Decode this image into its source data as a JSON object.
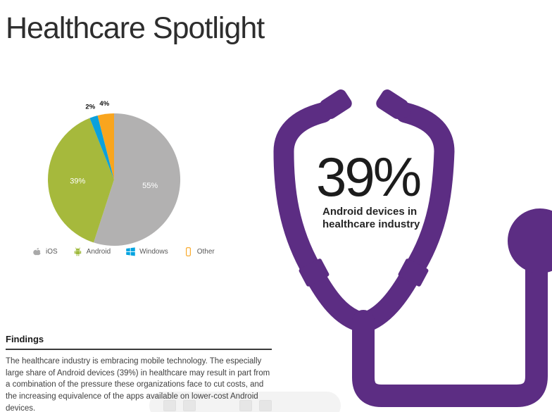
{
  "page": {
    "title": "Healthcare Spotlight"
  },
  "chart_data": {
    "type": "pie",
    "categories": [
      "iOS",
      "Android",
      "Windows",
      "Other"
    ],
    "values": [
      55,
      39,
      2,
      4
    ],
    "labels": [
      "55%",
      "39%",
      "2%",
      "4%"
    ],
    "colors": [
      "#b2b1b1",
      "#a6b93c",
      "#0ba1dc",
      "#f9a51e"
    ],
    "title": "",
    "start_angle_deg": 0,
    "direction": "clockwise",
    "legend_position": "bottom",
    "label_rule": "slices >= 10% labeled inside in white, small slices labeled outside in black"
  },
  "legend": {
    "items": [
      {
        "label": "iOS",
        "icon": "apple-icon",
        "color": "#a9a9a9"
      },
      {
        "label": "Android",
        "icon": "android-icon",
        "color": "#9fba3d"
      },
      {
        "label": "Windows",
        "icon": "windows-icon",
        "color": "#00a3e0"
      },
      {
        "label": "Other",
        "icon": "phone-icon",
        "color": "#f9a51e"
      }
    ]
  },
  "callout": {
    "value": "39%",
    "line1": "Android devices in",
    "line2": "healthcare industry"
  },
  "findings": {
    "heading": "Findings",
    "body": "The healthcare industry is embracing mobile technology. The especially large share of Android devices (39%) in healthcare may result in part from a combination of the pressure these organizations face to cut costs, and the increasing equivalence of the apps available on lower-cost Android devices."
  },
  "graphic": {
    "name": "stethoscope",
    "color": "#5c2d83"
  },
  "viewer_toolbar": {
    "visible": true
  }
}
